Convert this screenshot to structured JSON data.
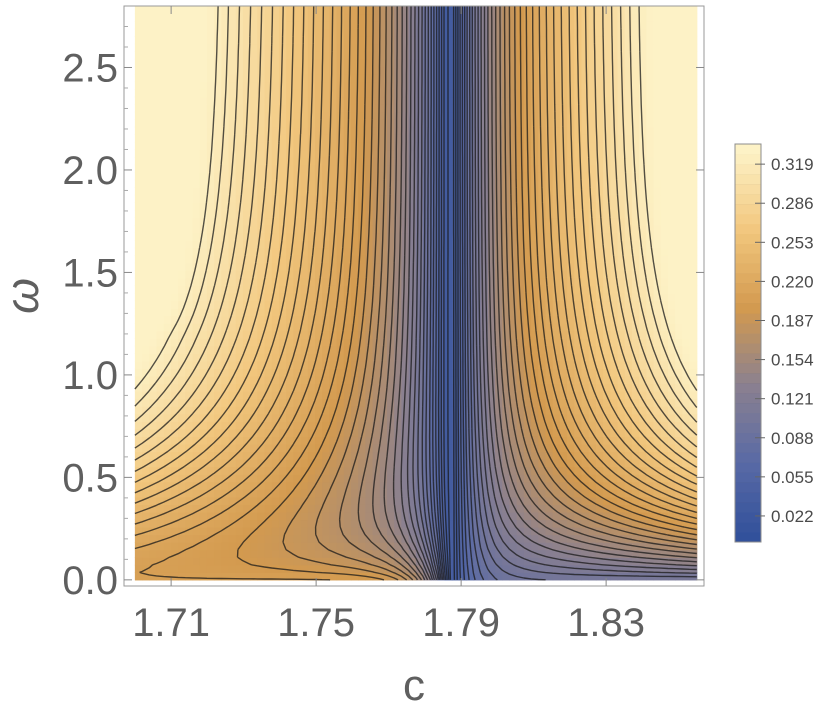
{
  "chart_data": {
    "type": "heatmap",
    "subtype": "contour",
    "title": "",
    "xlabel": "c",
    "ylabel": "ω",
    "xlim": [
      1.697,
      1.857
    ],
    "ylim": [
      -0.03,
      2.8
    ],
    "x_ticks": [
      "1.71",
      "1.75",
      "1.79",
      "1.83"
    ],
    "x_tick_values": [
      1.71,
      1.75,
      1.79,
      1.83
    ],
    "y_ticks": [
      "0.0",
      "0.5",
      "1.0",
      "1.5",
      "2.0",
      "2.5"
    ],
    "y_tick_values": [
      0.0,
      0.5,
      1.0,
      1.5,
      2.0,
      2.5
    ],
    "data_x_range": [
      1.7,
      1.855
    ],
    "data_y_range": [
      0.0,
      2.8
    ],
    "value_range": [
      0.0,
      0.33
    ],
    "contour_levels": 40,
    "legend": {
      "placement": "right",
      "labels": [
        "0.319",
        "0.286",
        "0.253",
        "0.220",
        "0.187",
        "0.154",
        "0.121",
        "0.088",
        "0.055",
        "0.022"
      ],
      "values": [
        0.319,
        0.286,
        0.253,
        0.22,
        0.187,
        0.154,
        0.121,
        0.088,
        0.055,
        0.022
      ],
      "range": [
        0.0,
        0.336
      ]
    },
    "colormap": [
      "#2f4f9a",
      "#5869a6",
      "#8a8090",
      "#d39a4f",
      "#f2c77e",
      "#fdf2c6"
    ],
    "frame_color": "#999999",
    "contour_line_color": "#1a1a1a"
  }
}
